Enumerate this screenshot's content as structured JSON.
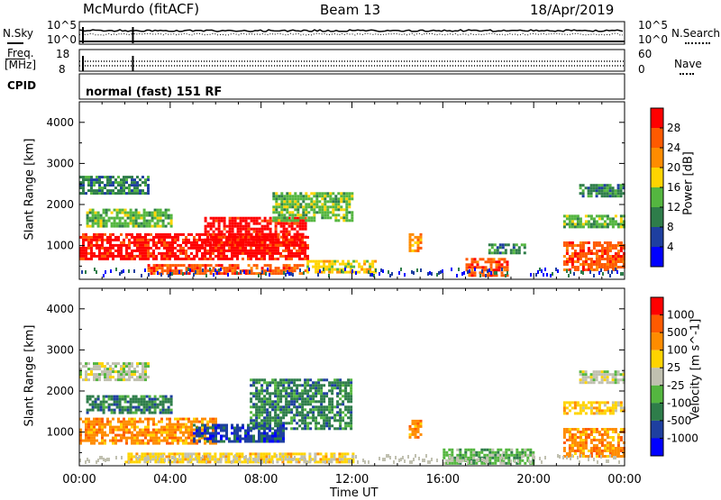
{
  "header": {
    "station": "McMurdo (fitACF)",
    "beam": "Beam 13",
    "date": "18/Apr/2019"
  },
  "top_panels": {
    "nsky_label": "N.Sky",
    "nsky_top": "10^5",
    "nsky_bottom": "10^0",
    "nsearch_label": "N.Search",
    "nsearch_top": "10^5",
    "nsearch_bottom": "10^0",
    "freq_label_1": "Freq.",
    "freq_label_2": "[MHz]",
    "freq_top": "18",
    "freq_bottom": "8",
    "nave_label": "Nave",
    "nave_top": "60",
    "nave_bottom": "0",
    "cpid_label": "CPID",
    "cpid_text": "normal (fast) 151 RF"
  },
  "colors": {
    "power": [
      "#0000ff",
      "#1e3fa0",
      "#2e7d4a",
      "#54b640",
      "#ffd400",
      "#ff8c00",
      "#ff5a00",
      "#ff0000"
    ],
    "velocity": [
      "#ff0000",
      "#ff5a00",
      "#ff8c00",
      "#ffd400",
      "#c0c0b0",
      "#54b640",
      "#2e7d4a",
      "#1e3fa0",
      "#0000ff"
    ]
  },
  "chart_data": [
    {
      "type": "heatmap",
      "title": "Power",
      "ylabel": "Slant Range [km]",
      "xlabel": "Time UT",
      "x_ticks": [
        "00:00",
        "04:00",
        "08:00",
        "12:00",
        "16:00",
        "20:00",
        "00:00"
      ],
      "y_ticks": [
        1000,
        2000,
        3000,
        4000
      ],
      "ylim": [
        180,
        4500
      ],
      "colorbar": {
        "label": "Power [dB]",
        "ticks": [
          "4",
          "8",
          "12",
          "16",
          "20",
          "24",
          "28"
        ]
      },
      "regions": [
        {
          "t0": 0.0,
          "t1": 10.0,
          "r0": 700,
          "r1": 1300,
          "level": 7
        },
        {
          "t0": 5.5,
          "t1": 10.0,
          "r0": 1000,
          "r1": 1700,
          "level": 7
        },
        {
          "t0": 0.3,
          "t1": 4.0,
          "r0": 1450,
          "r1": 1900,
          "level": 3
        },
        {
          "t0": 0.0,
          "t1": 3.0,
          "r0": 2300,
          "r1": 2700,
          "level": 2
        },
        {
          "t0": 8.5,
          "t1": 12.0,
          "r0": 1600,
          "r1": 2300,
          "level": 3
        },
        {
          "t0": 3.0,
          "t1": 10.0,
          "r0": 300,
          "r1": 550,
          "level": 6
        },
        {
          "t0": 10.0,
          "t1": 13.0,
          "r0": 350,
          "r1": 650,
          "level": 4
        },
        {
          "t0": 14.5,
          "t1": 15.0,
          "r0": 900,
          "r1": 1300,
          "level": 5
        },
        {
          "t0": 17.0,
          "t1": 18.8,
          "r0": 300,
          "r1": 700,
          "level": 6
        },
        {
          "t0": 18.0,
          "t1": 19.6,
          "r0": 850,
          "r1": 1050,
          "level": 2
        },
        {
          "t0": 21.3,
          "t1": 24.0,
          "r0": 400,
          "r1": 1100,
          "level": 6
        },
        {
          "t0": 21.3,
          "t1": 24.0,
          "r0": 1450,
          "r1": 1750,
          "level": 3
        },
        {
          "t0": 22.0,
          "t1": 24.0,
          "r0": 2200,
          "r1": 2500,
          "level": 2
        }
      ]
    },
    {
      "type": "heatmap",
      "title": "Velocity",
      "ylabel": "Slant Range [km]",
      "xlabel": "Time UT",
      "x_ticks": [
        "00:00",
        "04:00",
        "08:00",
        "12:00",
        "16:00",
        "20:00",
        "00:00"
      ],
      "y_ticks": [
        1000,
        2000,
        3000,
        4000
      ],
      "ylim": [
        180,
        4500
      ],
      "colorbar": {
        "label": "Velocity [m s^-1]",
        "ticks": [
          "1000",
          "500",
          "100",
          "25",
          "-25",
          "-100",
          "-500",
          "-1000"
        ]
      },
      "regions": [
        {
          "t0": 0.0,
          "t1": 6.0,
          "r0": 700,
          "r1": 1350,
          "level": 2
        },
        {
          "t0": 5.0,
          "t1": 9.0,
          "r0": 800,
          "r1": 1200,
          "level": 7
        },
        {
          "t0": 7.5,
          "t1": 12.0,
          "r0": 1100,
          "r1": 2300,
          "level": 6
        },
        {
          "t0": 0.3,
          "t1": 4.0,
          "r0": 1450,
          "r1": 1900,
          "level": 6
        },
        {
          "t0": 0.0,
          "t1": 3.0,
          "r0": 2300,
          "r1": 2700,
          "level": 4
        },
        {
          "t0": 2.0,
          "t1": 12.0,
          "r0": 250,
          "r1": 500,
          "level": 3
        },
        {
          "t0": 14.5,
          "t1": 15.0,
          "r0": 900,
          "r1": 1300,
          "level": 2
        },
        {
          "t0": 16.0,
          "t1": 20.0,
          "r0": 250,
          "r1": 600,
          "level": 5
        },
        {
          "t0": 21.3,
          "t1": 24.0,
          "r0": 400,
          "r1": 1100,
          "level": 2
        },
        {
          "t0": 21.3,
          "t1": 24.0,
          "r0": 1450,
          "r1": 1750,
          "level": 3
        },
        {
          "t0": 22.0,
          "t1": 24.0,
          "r0": 2200,
          "r1": 2500,
          "level": 4
        }
      ]
    }
  ]
}
